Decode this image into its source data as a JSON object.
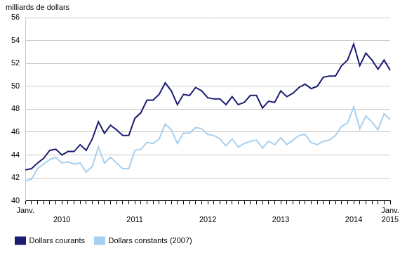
{
  "chart_data": {
    "type": "line",
    "y_label": "milliards de dollars",
    "categories": [
      "Janv.",
      null,
      null,
      null,
      null,
      null,
      "2010",
      null,
      null,
      null,
      null,
      null,
      null,
      null,
      null,
      null,
      null,
      null,
      "2011",
      null,
      null,
      null,
      null,
      null,
      null,
      null,
      null,
      null,
      null,
      null,
      "2012",
      null,
      null,
      null,
      null,
      null,
      null,
      null,
      null,
      null,
      null,
      null,
      "2013",
      null,
      null,
      null,
      null,
      null,
      null,
      null,
      null,
      null,
      null,
      null,
      "2014",
      null,
      null,
      null,
      null,
      null,
      [
        "Janv.",
        "2015"
      ]
    ],
    "series": [
      {
        "name": "Dollars courants",
        "color": "#1b1b72",
        "values": [
          42.7,
          42.8,
          43.3,
          43.7,
          44.4,
          44.5,
          44.0,
          44.3,
          44.3,
          44.9,
          44.4,
          45.4,
          46.9,
          45.9,
          46.6,
          46.2,
          45.7,
          45.7,
          47.2,
          47.7,
          48.8,
          48.8,
          49.3,
          50.3,
          49.6,
          48.4,
          49.3,
          49.2,
          49.9,
          49.6,
          49.0,
          48.9,
          48.9,
          48.4,
          49.1,
          48.4,
          48.6,
          49.2,
          49.2,
          48.1,
          48.7,
          48.6,
          49.6,
          49.1,
          49.4,
          49.9,
          50.2,
          49.8,
          50.0,
          50.8,
          50.9,
          50.9,
          51.8,
          52.3,
          53.7,
          51.8,
          52.9,
          52.3,
          51.5,
          52.3,
          51.4
        ]
      },
      {
        "name": "Dollars constants (2007)",
        "color": "#a8d0ee",
        "values": [
          41.7,
          41.9,
          42.8,
          43.2,
          43.6,
          43.8,
          43.3,
          43.4,
          43.2,
          43.3,
          42.5,
          43.0,
          44.7,
          43.3,
          43.8,
          43.3,
          42.8,
          42.8,
          44.4,
          44.5,
          45.1,
          45.0,
          45.4,
          46.7,
          46.2,
          45.0,
          45.9,
          45.9,
          46.4,
          46.3,
          45.8,
          45.7,
          45.4,
          44.8,
          45.4,
          44.7,
          45.0,
          45.2,
          45.3,
          44.6,
          45.2,
          44.9,
          45.5,
          44.9,
          45.3,
          45.7,
          45.8,
          45.1,
          44.9,
          45.2,
          45.3,
          45.7,
          46.5,
          46.8,
          48.2,
          46.3,
          47.4,
          46.9,
          46.2,
          47.6,
          47.1
        ]
      }
    ],
    "ylim": [
      40,
      56
    ],
    "yticks": [
      40,
      42,
      44,
      46,
      48,
      50,
      52,
      54,
      56
    ],
    "grid": true,
    "legend": "bottom"
  }
}
